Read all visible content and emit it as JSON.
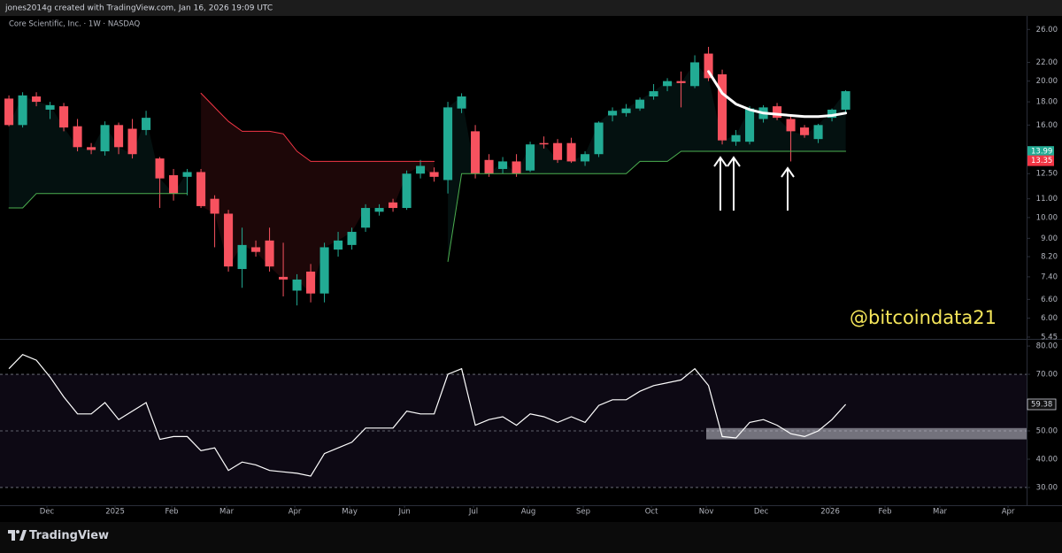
{
  "header": "jones2014g created with TradingView.com, Jan 16, 2026 19:09 UTC",
  "watermark": "@bitcoindata21",
  "footer": "TradingView",
  "chart_data": [
    {
      "type": "candlestick",
      "title": "Core Scientific, Inc. · 1W · NASDAQ",
      "log_scale": true,
      "up_color": "#22ab94",
      "down_color": "#f7525f",
      "xlim": [
        -0.65,
        74.19
      ],
      "ylim": [
        5.4,
        27.6
      ],
      "yticks": [
        {
          "value": 26,
          "label": "26.00"
        },
        {
          "value": 22,
          "label": "22.00"
        },
        {
          "value": 20,
          "label": "20.00"
        },
        {
          "value": 18,
          "label": "18.00"
        },
        {
          "value": 16,
          "label": "16.00"
        },
        {
          "value": 12.5,
          "label": "12.50"
        },
        {
          "value": 11,
          "label": "11.00"
        },
        {
          "value": 10,
          "label": "10.00"
        },
        {
          "value": 9,
          "label": "9.00"
        },
        {
          "value": 8.2,
          "label": "8.20"
        },
        {
          "value": 7.4,
          "label": "7.40"
        },
        {
          "value": 6.6,
          "label": "6.60"
        },
        {
          "value": 6,
          "label": "6.00"
        },
        {
          "value": 5.45,
          "label": "5.45"
        }
      ],
      "open": [
        18.3,
        16.0,
        18.5,
        17.3,
        17.6,
        15.9,
        14.3,
        14.0,
        16.0,
        15.7,
        15.6,
        13.5,
        12.4,
        12.3,
        12.6,
        11.0,
        10.2,
        7.7,
        8.6,
        8.9,
        7.4,
        6.9,
        7.6,
        6.8,
        8.5,
        8.7,
        9.5,
        10.3,
        10.8,
        10.5,
        12.5,
        12.6,
        12.1,
        17.4,
        15.5,
        13.4,
        12.8,
        13.3,
        12.7,
        14.6,
        14.6,
        14.6,
        13.3,
        13.8,
        16.8,
        17.0,
        17.4,
        18.5,
        19.5,
        20.0,
        19.5,
        23.0,
        20.7,
        14.7,
        14.7,
        16.5,
        17.6,
        16.5,
        15.8,
        14.9,
        16.6,
        17.3
      ],
      "high": [
        18.6,
        18.9,
        18.9,
        18.0,
        17.9,
        16.5,
        14.6,
        16.3,
        16.2,
        16.5,
        17.2,
        13.6,
        12.8,
        12.8,
        12.8,
        11.2,
        10.4,
        9.5,
        8.9,
        9.5,
        8.8,
        7.5,
        7.9,
        8.8,
        9.3,
        9.5,
        10.7,
        10.7,
        11.0,
        12.7,
        13.4,
        12.9,
        18.0,
        18.8,
        16.0,
        13.8,
        13.6,
        13.8,
        14.7,
        15.1,
        14.9,
        15.0,
        14.0,
        16.3,
        17.5,
        17.8,
        18.4,
        19.7,
        20.3,
        21.0,
        22.8,
        23.8,
        21.2,
        15.6,
        17.6,
        17.7,
        17.9,
        16.8,
        16.0,
        16.1,
        17.4,
        19.1
      ],
      "low": [
        15.9,
        15.8,
        17.6,
        16.5,
        15.5,
        14.0,
        13.8,
        13.7,
        13.8,
        13.5,
        15.2,
        10.5,
        10.9,
        11.2,
        10.5,
        8.6,
        7.6,
        7.0,
        8.2,
        7.6,
        6.7,
        6.4,
        6.5,
        6.5,
        8.2,
        8.5,
        9.3,
        10.1,
        10.3,
        10.4,
        12.2,
        12.0,
        11.3,
        17.0,
        12.2,
        12.3,
        12.5,
        12.3,
        12.6,
        14.2,
        13.2,
        13.2,
        13.0,
        13.6,
        16.3,
        16.7,
        17.2,
        18.2,
        19.0,
        17.5,
        19.3,
        20.0,
        14.5,
        14.4,
        14.5,
        16.2,
        16.4,
        13.3,
        15.0,
        14.6,
        16.3,
        17.1
      ],
      "close": [
        16.0,
        18.6,
        18.0,
        17.7,
        15.8,
        14.3,
        14.1,
        16.0,
        14.3,
        13.8,
        16.6,
        12.2,
        11.3,
        12.6,
        10.6,
        10.2,
        7.8,
        8.7,
        8.4,
        7.8,
        7.3,
        7.3,
        6.8,
        8.6,
        8.9,
        9.3,
        10.5,
        10.5,
        10.5,
        12.5,
        13.0,
        12.3,
        17.5,
        18.5,
        12.5,
        12.5,
        13.3,
        12.5,
        14.5,
        14.5,
        13.4,
        13.3,
        13.8,
        16.2,
        17.2,
        17.4,
        18.2,
        19.0,
        20.0,
        19.8,
        22.0,
        20.3,
        14.8,
        15.2,
        17.4,
        17.5,
        16.6,
        15.5,
        15.2,
        16.0,
        17.3,
        19.0
      ],
      "series": [
        {
          "color": "#4caf50",
          "fill": "rgba(38,166,154,0.10)",
          "values": [
            10.5,
            10.5,
            11.3,
            11.3,
            11.3,
            11.3,
            11.3,
            11.3,
            11.3,
            11.3,
            11.3,
            11.3,
            11.3,
            11.3,
            null,
            null,
            null,
            null,
            null,
            null,
            null,
            null,
            null,
            null,
            null,
            null,
            null,
            null,
            null,
            null,
            null,
            null,
            8.0,
            12.5,
            12.5,
            12.5,
            12.5,
            12.5,
            12.5,
            12.5,
            12.5,
            12.5,
            12.5,
            12.5,
            12.5,
            12.5,
            13.3,
            13.3,
            13.3,
            14.0,
            14.0,
            14.0,
            14.0,
            14.0,
            14.0,
            14.0,
            14.0,
            14.0,
            14.0,
            14.0,
            14.0,
            14.0
          ]
        },
        {
          "color": "#f23645",
          "fill": "rgba(242,54,69,0.12)",
          "values": [
            null,
            null,
            null,
            null,
            null,
            null,
            null,
            null,
            null,
            null,
            null,
            null,
            null,
            null,
            18.8,
            17.5,
            16.3,
            15.5,
            15.5,
            15.5,
            15.3,
            14.0,
            13.3,
            13.3,
            13.3,
            13.3,
            13.3,
            13.3,
            13.3,
            13.3,
            13.3,
            13.3,
            null,
            null,
            null,
            null,
            null,
            null,
            null,
            null,
            null,
            null,
            null,
            null,
            null,
            null,
            null,
            null,
            null,
            null,
            null,
            null,
            null,
            null,
            null,
            null,
            null,
            null,
            null,
            null,
            null,
            null
          ]
        },
        {
          "color": "#ffffff",
          "width": 3,
          "values": [
            null,
            null,
            null,
            null,
            null,
            null,
            null,
            null,
            null,
            null,
            null,
            null,
            null,
            null,
            null,
            null,
            null,
            null,
            null,
            null,
            null,
            null,
            null,
            null,
            null,
            null,
            null,
            null,
            null,
            null,
            null,
            null,
            null,
            null,
            null,
            null,
            null,
            null,
            null,
            null,
            null,
            null,
            null,
            null,
            null,
            null,
            null,
            null,
            null,
            null,
            null,
            21.0,
            18.8,
            17.8,
            17.3,
            17.0,
            16.9,
            16.8,
            16.7,
            16.7,
            16.8,
            17.0
          ]
        }
      ],
      "last_labels": [
        {
          "value": 13.99,
          "color": "#22ab94"
        },
        {
          "value": 13.35,
          "color": "#f23645"
        }
      ]
    },
    {
      "type": "line",
      "color": "#ffffff",
      "xlim": [
        -0.65,
        74.19
      ],
      "xticks": [
        {
          "value": 2.77,
          "label": "Dec"
        },
        {
          "value": 7.74,
          "label": "2025"
        },
        {
          "value": 11.87,
          "label": "Feb"
        },
        {
          "value": 15.87,
          "label": "Mar"
        },
        {
          "value": 20.84,
          "label": "Apr"
        },
        {
          "value": 24.84,
          "label": "May"
        },
        {
          "value": 28.84,
          "label": "Jun"
        },
        {
          "value": 33.87,
          "label": "Jul"
        },
        {
          "value": 37.87,
          "label": "Aug"
        },
        {
          "value": 41.87,
          "label": "Sep"
        },
        {
          "value": 46.84,
          "label": "Oct"
        },
        {
          "value": 50.84,
          "label": "Nov"
        },
        {
          "value": 54.84,
          "label": "Dec"
        },
        {
          "value": 59.87,
          "label": "2026"
        },
        {
          "value": 63.87,
          "label": "Feb"
        },
        {
          "value": 67.87,
          "label": "Mar"
        },
        {
          "value": 72.84,
          "label": "Apr"
        }
      ],
      "ylim": [
        25.6,
        81.9
      ],
      "yticks": [
        {
          "value": 80,
          "label": "80.00"
        },
        {
          "value": 70,
          "label": "70.00"
        },
        {
          "value": 50,
          "label": "50.00"
        },
        {
          "value": 40,
          "label": "40.00"
        },
        {
          "value": 30,
          "label": "30.00"
        }
      ],
      "hlines": [
        70,
        50,
        30
      ],
      "values": [
        72,
        77,
        75,
        69,
        62,
        56,
        56,
        60,
        54,
        57,
        60,
        47,
        48,
        48,
        43,
        44,
        36,
        39,
        38,
        36,
        35.5,
        35,
        34,
        42,
        44,
        46,
        51,
        51,
        51,
        57,
        56,
        56,
        70,
        72,
        52,
        54,
        55,
        52,
        56,
        55,
        53,
        55,
        53,
        59,
        61,
        61,
        64,
        66,
        67,
        68,
        72,
        66,
        48,
        47.5,
        53,
        54,
        52,
        49,
        48,
        50,
        54,
        59.38
      ],
      "last_label": 59.38
    }
  ]
}
